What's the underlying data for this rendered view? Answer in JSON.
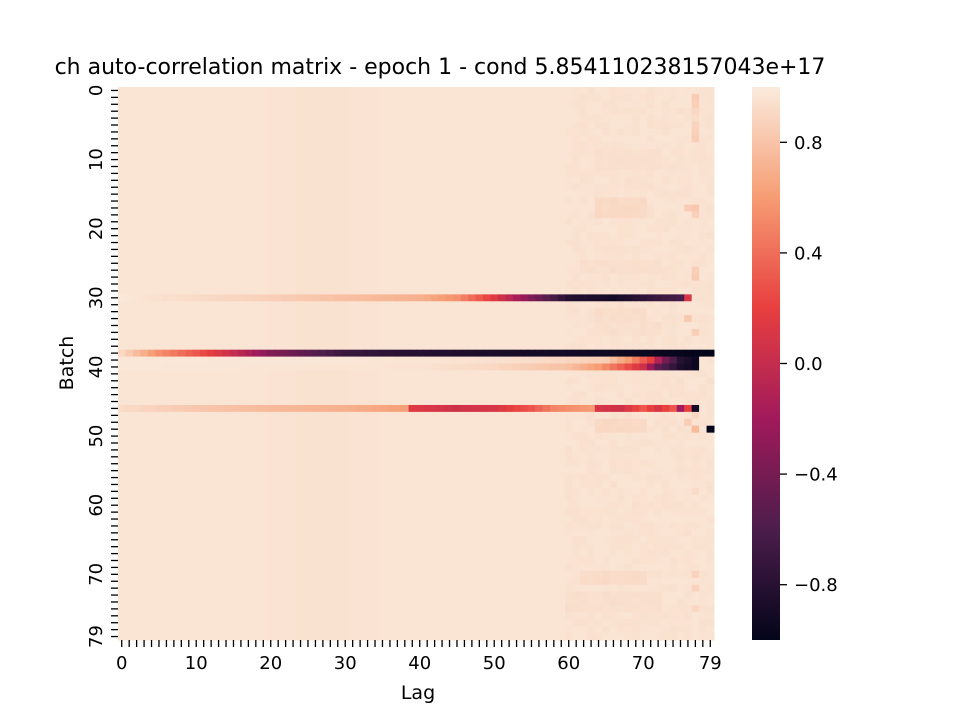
{
  "chart_data": {
    "type": "heatmap",
    "title": "ch auto-correlation matrix - epoch 1 - cond 5.854110238157043e+17",
    "xlabel": "Lag",
    "ylabel": "Batch",
    "rows": 80,
    "cols": 80,
    "x_tick_labels": [
      "0",
      "10",
      "20",
      "30",
      "40",
      "50",
      "60",
      "70",
      "79"
    ],
    "x_tick_values": [
      0,
      10,
      20,
      30,
      40,
      50,
      60,
      70,
      79
    ],
    "y_tick_labels": [
      "0",
      "10",
      "20",
      "30",
      "40",
      "50",
      "60",
      "70",
      "79"
    ],
    "y_tick_values": [
      0,
      10,
      20,
      30,
      40,
      50,
      60,
      70,
      79
    ],
    "colorbar": {
      "vmin": -1.0,
      "vmax": 1.0,
      "tick_values": [
        0.8,
        0.4,
        0.0,
        -0.4,
        -0.8
      ],
      "tick_labels": [
        "0.8",
        "0.4",
        "0.0",
        "−0.4",
        "−0.8"
      ],
      "colormap": "rocket",
      "stops": [
        "#03051a",
        "#4c1d4b",
        "#a11a5b",
        "#e83f3f",
        "#f69c73",
        "#faebdd"
      ]
    },
    "background_value": 0.97,
    "rows_special": [
      {
        "row": 30,
        "knots": [
          [
            0,
            0.98
          ],
          [
            10,
            0.92
          ],
          [
            20,
            0.86
          ],
          [
            30,
            0.78
          ],
          [
            40,
            0.7
          ],
          [
            45,
            0.55
          ],
          [
            50,
            0.15
          ],
          [
            55,
            -0.35
          ],
          [
            60,
            -0.82
          ],
          [
            66,
            -0.9
          ],
          [
            72,
            -0.7
          ],
          [
            76,
            -0.6
          ]
        ],
        "end": 76,
        "markers": [
          [
            76,
            0.1
          ]
        ]
      },
      {
        "row": 38,
        "knots": [
          [
            0,
            0.9
          ],
          [
            5,
            0.55
          ],
          [
            10,
            0.3
          ],
          [
            15,
            0.0
          ],
          [
            20,
            -0.35
          ],
          [
            30,
            -0.7
          ],
          [
            40,
            -0.82
          ],
          [
            55,
            -0.9
          ],
          [
            70,
            -0.95
          ],
          [
            78,
            -1.0
          ]
        ],
        "end": 78,
        "markers": []
      },
      {
        "row": 39,
        "knots": [
          [
            0,
            0.98
          ],
          [
            40,
            0.97
          ],
          [
            55,
            0.93
          ],
          [
            65,
            0.85
          ],
          [
            68,
            0.6
          ],
          [
            71,
            0.2
          ],
          [
            73,
            -0.4
          ],
          [
            75,
            -0.8
          ],
          [
            77,
            -0.95
          ]
        ],
        "end": 77,
        "markers": []
      },
      {
        "row": 40,
        "knots": [
          [
            0,
            0.98
          ],
          [
            40,
            0.96
          ],
          [
            50,
            0.9
          ],
          [
            60,
            0.78
          ],
          [
            64,
            0.6
          ],
          [
            67,
            0.35
          ],
          [
            70,
            0.05
          ],
          [
            72,
            -0.5
          ],
          [
            75,
            -0.85
          ],
          [
            77,
            -0.95
          ]
        ],
        "end": 77,
        "markers": []
      },
      {
        "row": 46,
        "knots": [
          [
            0,
            0.92
          ],
          [
            10,
            0.82
          ],
          [
            20,
            0.75
          ],
          [
            30,
            0.7
          ],
          [
            38,
            0.62
          ],
          [
            39,
            0.15
          ],
          [
            45,
            0.05
          ],
          [
            50,
            0.1
          ],
          [
            55,
            0.3
          ],
          [
            58,
            0.5
          ],
          [
            63,
            0.6
          ],
          [
            64,
            0.1
          ],
          [
            67,
            0.05
          ],
          [
            70,
            0.3
          ],
          [
            72,
            0.1
          ],
          [
            74,
            0.3
          ],
          [
            75,
            -0.2
          ],
          [
            76,
            0.2
          ],
          [
            77,
            -0.9
          ]
        ],
        "end": 77,
        "markers": []
      }
    ],
    "dots": [
      [
        77,
        1,
        0.85
      ],
      [
        77,
        2,
        0.86
      ],
      [
        77,
        3,
        0.9
      ],
      [
        77,
        4,
        0.93
      ],
      [
        77,
        5,
        0.88
      ],
      [
        77,
        6,
        0.87
      ],
      [
        77,
        7,
        0.85
      ],
      [
        76,
        17,
        0.85
      ],
      [
        77,
        17,
        0.82
      ],
      [
        77,
        18,
        0.87
      ],
      [
        77,
        26,
        0.86
      ],
      [
        77,
        27,
        0.84
      ],
      [
        76,
        33,
        0.83
      ],
      [
        77,
        35,
        0.86
      ],
      [
        79,
        38,
        -1.0
      ],
      [
        77,
        47,
        0.9
      ],
      [
        76,
        48,
        0.85
      ],
      [
        77,
        49,
        0.75
      ],
      [
        79,
        49,
        -1.0
      ],
      [
        77,
        58,
        0.92
      ],
      [
        77,
        70,
        0.88
      ],
      [
        77,
        72,
        0.88
      ],
      [
        77,
        75,
        0.9
      ]
    ],
    "bands": [
      {
        "rows": [
          16,
          18
        ],
        "cols": [
          64,
          70
        ],
        "value": 0.9
      },
      {
        "rows": [
          32,
          33
        ],
        "cols": [
          64,
          70
        ],
        "value": 0.92
      },
      {
        "rows": [
          48,
          49
        ],
        "cols": [
          64,
          70
        ],
        "value": 0.9
      },
      {
        "rows": [
          70,
          71
        ],
        "cols": [
          62,
          70
        ],
        "value": 0.91
      },
      {
        "rows": [
          9,
          11
        ],
        "cols": [
          64,
          72
        ],
        "value": 0.93
      },
      {
        "rows": [
          25,
          26
        ],
        "cols": [
          62,
          72
        ],
        "value": 0.93
      },
      {
        "rows": [
          34,
          35
        ],
        "cols": [
          64,
          72
        ],
        "value": 0.93
      },
      {
        "rows": [
          73,
          75
        ],
        "cols": [
          60,
          72
        ],
        "value": 0.93
      }
    ]
  }
}
